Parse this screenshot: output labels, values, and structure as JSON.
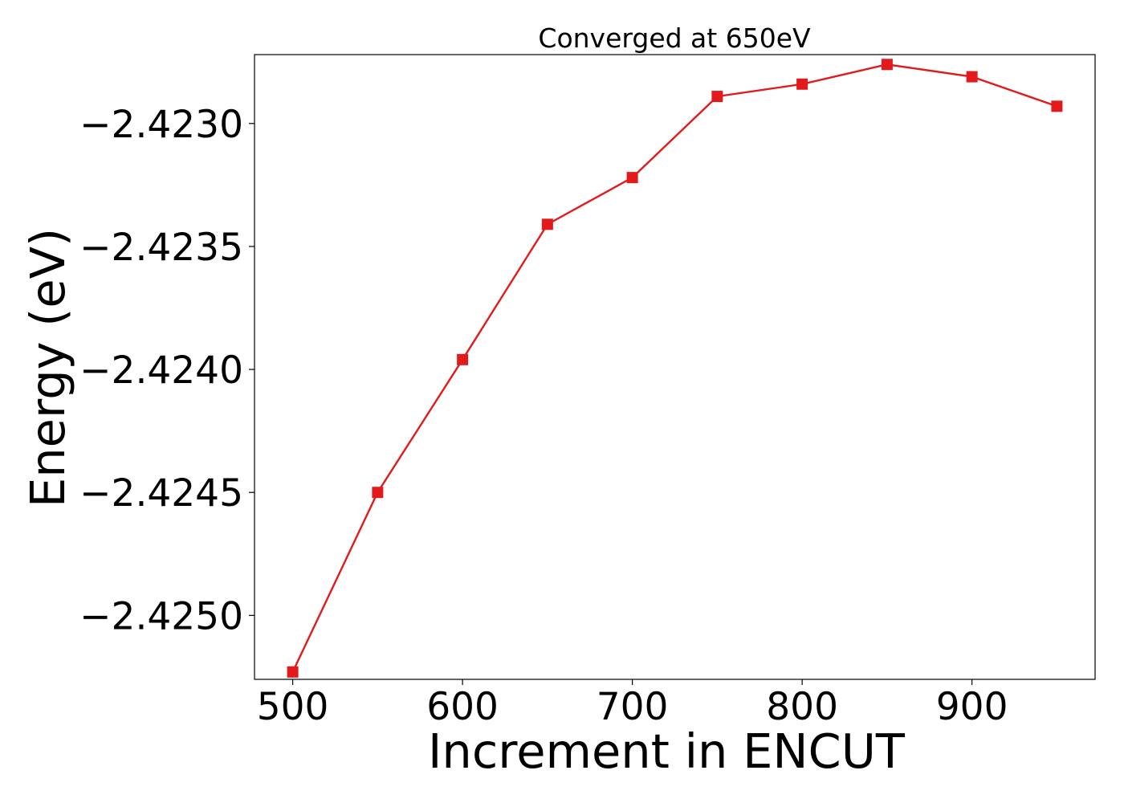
{
  "chart_data": {
    "type": "line",
    "title": "Converged at 650eV",
    "xlabel": "Increment in ENCUT",
    "ylabel": "Energy (eV)",
    "x": [
      500,
      550,
      600,
      650,
      700,
      750,
      800,
      850,
      900,
      950
    ],
    "series": [
      {
        "values": [
          -2.42523,
          -2.4245,
          -2.42396,
          -2.42341,
          -2.42322,
          -2.42289,
          -2.42284,
          -2.42276,
          -2.42281,
          -2.42293
        ],
        "color": "#e31a1c",
        "marker": "square"
      }
    ],
    "xlim": [
      477.5,
      972.5
    ],
    "ylim": [
      -2.42526,
      -2.42272
    ],
    "xticks": [
      500,
      600,
      700,
      800,
      900
    ],
    "xtick_labels": [
      "500",
      "600",
      "700",
      "800",
      "900"
    ],
    "yticks": [
      -2.423,
      -2.4235,
      -2.424,
      -2.4245,
      -2.425
    ],
    "ytick_labels": [
      "−2.4230",
      "−2.4235",
      "−2.4240",
      "−2.4245",
      "−2.4250"
    ],
    "grid": false,
    "legend": false
  }
}
